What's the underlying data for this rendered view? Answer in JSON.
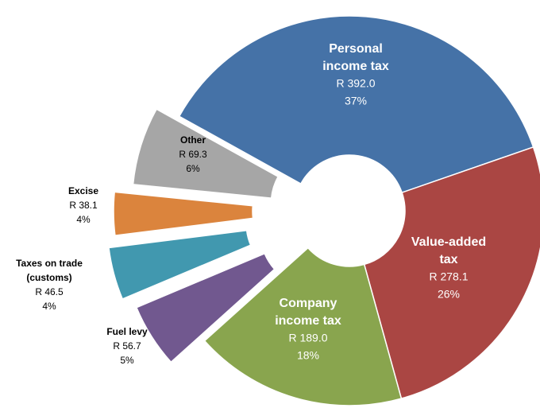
{
  "chart_data": {
    "type": "donut",
    "categories": [
      "Personal income tax",
      "Value-added tax",
      "Company income tax",
      "Fuel levy",
      "Taxes on trade (customs)",
      "Excise",
      "Other"
    ],
    "values": [
      392.0,
      278.1,
      189.0,
      56.7,
      46.5,
      38.1,
      69.3
    ],
    "value_labels": [
      "R 392.0",
      "R 278.1",
      "R 189.0",
      "R 56.7",
      "R 46.5",
      "R 38.1",
      "R 69.3"
    ],
    "percent_labels": [
      "37%",
      "26%",
      "18%",
      "5%",
      "4%",
      "4%",
      "6%"
    ],
    "colors": [
      "#4572a7",
      "#aa4643",
      "#89a54e",
      "#71588f",
      "#4198af",
      "#db843d",
      "#a6a6a6"
    ]
  }
}
